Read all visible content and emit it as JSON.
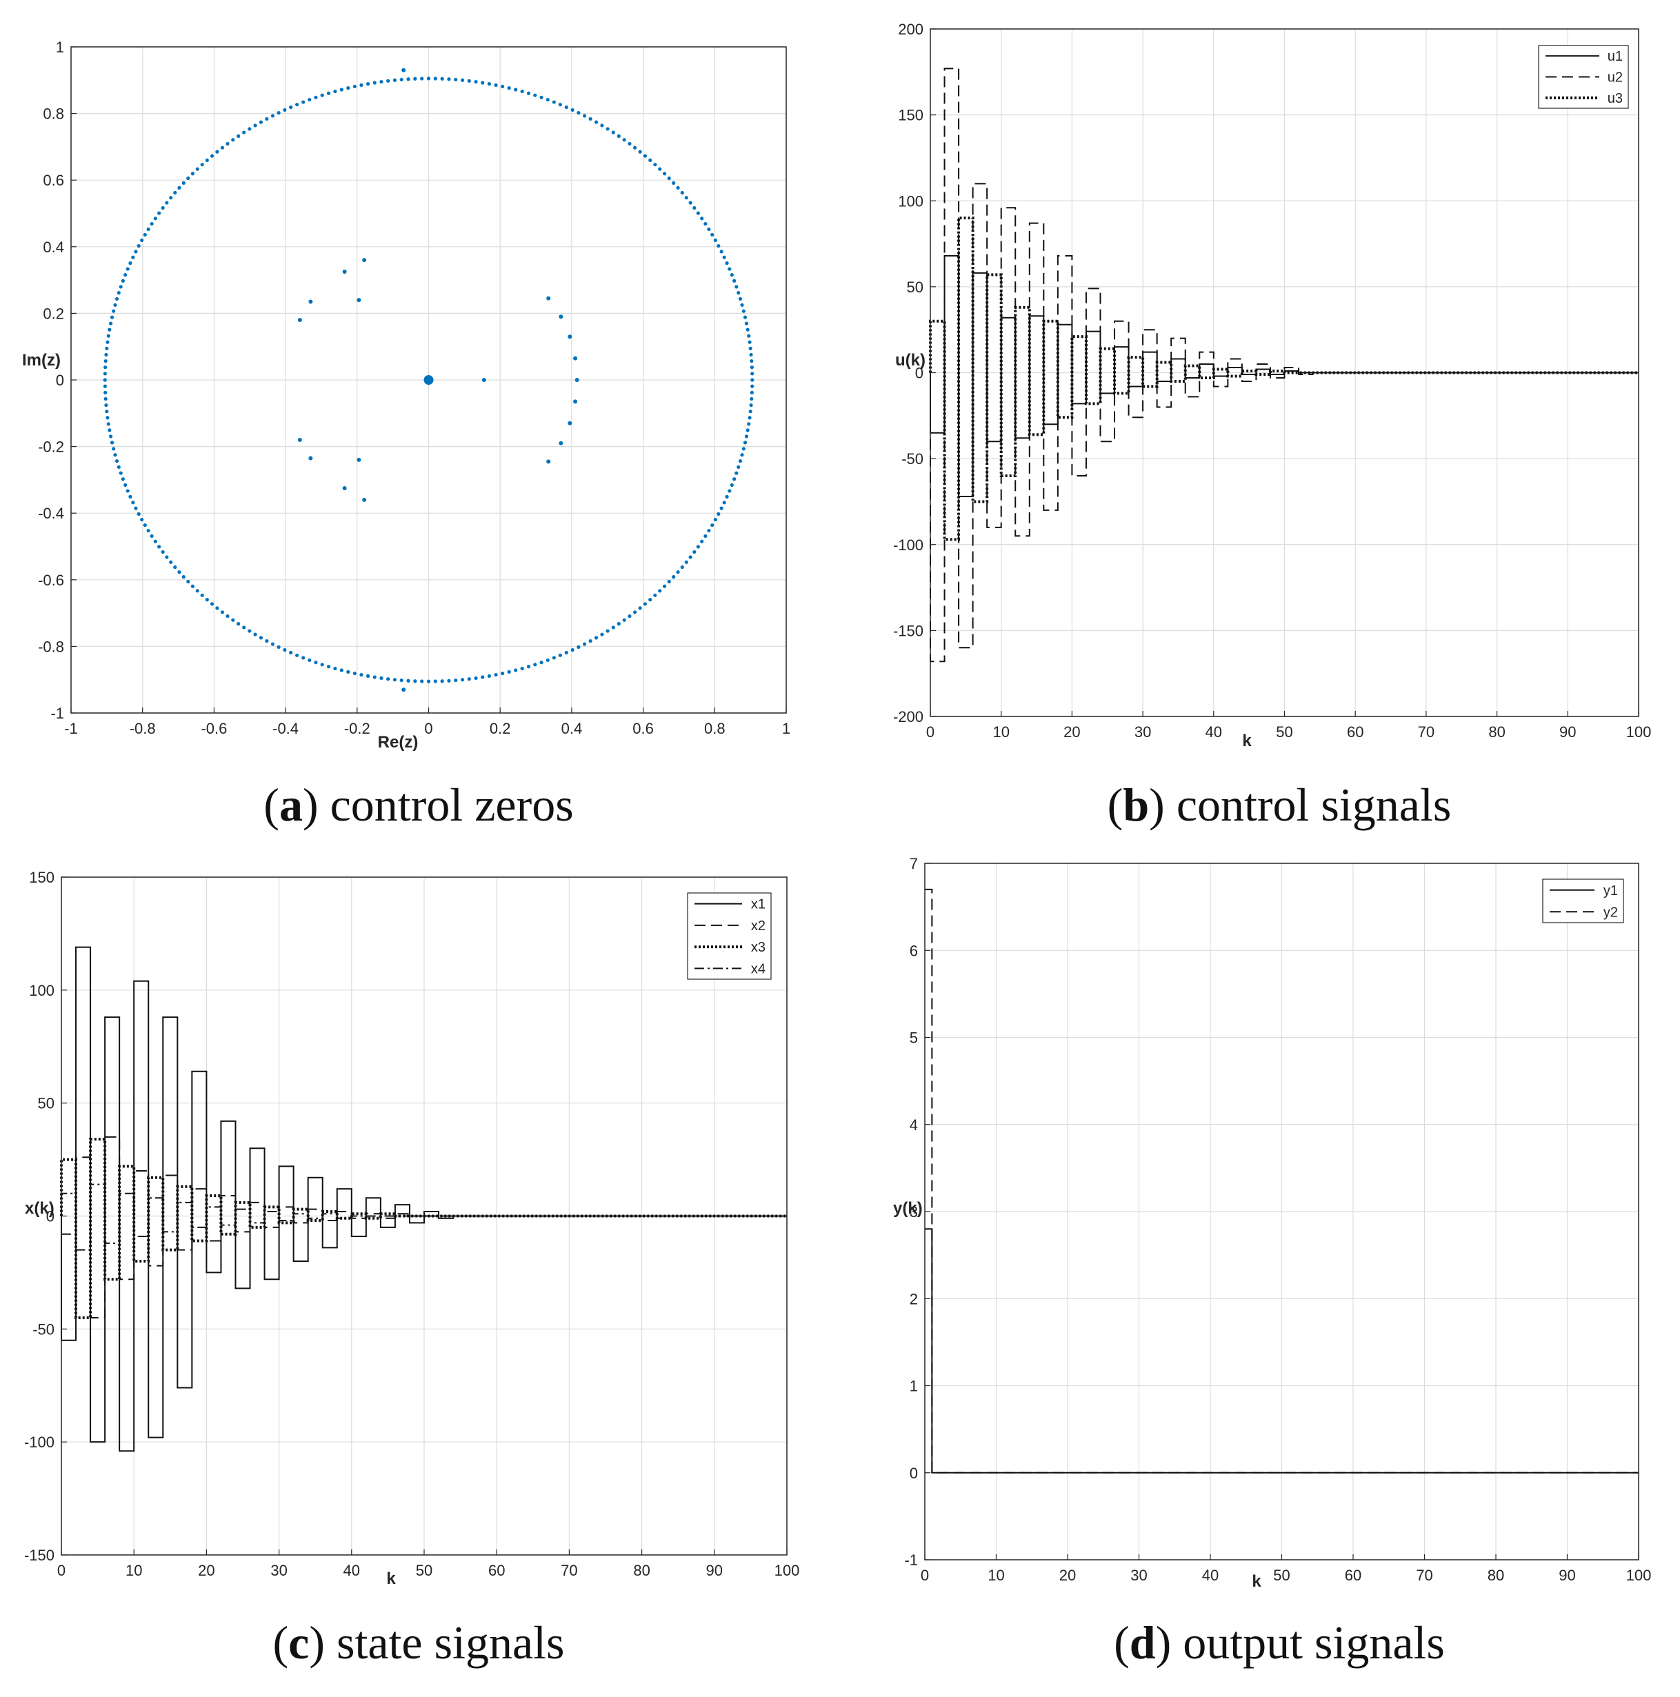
{
  "chart_data": [
    {
      "id": "a",
      "type": "scatter",
      "xlabel": "Re(z)",
      "ylabel": "Im(z)",
      "xlim": [
        -1,
        1
      ],
      "ylim": [
        -1,
        1
      ],
      "xticks": [
        "-1",
        "-0.8",
        "-0.6",
        "-0.4",
        "-0.2",
        "0",
        "0.2",
        "0.4",
        "0.6",
        "0.8",
        "1"
      ],
      "yticks": [
        "-1",
        "-0.8",
        "-0.6",
        "-0.4",
        "-0.2",
        "0",
        "0.2",
        "0.4",
        "0.6",
        "0.8",
        "1"
      ],
      "grid": true,
      "marker_color": "#0072BD",
      "circle_radius": 0.905,
      "circle_points": 300,
      "extra_points": [
        [
          -0.07,
          0.93
        ],
        [
          -0.07,
          -0.93
        ],
        [
          -0.36,
          0.18
        ],
        [
          -0.36,
          -0.18
        ],
        [
          -0.33,
          0.235
        ],
        [
          -0.33,
          -0.235
        ],
        [
          -0.235,
          0.325
        ],
        [
          -0.235,
          -0.325
        ],
        [
          -0.195,
          0.24
        ],
        [
          -0.195,
          -0.24
        ],
        [
          -0.18,
          0.36
        ],
        [
          -0.18,
          -0.36
        ],
        [
          0.155,
          0.0
        ],
        [
          0.335,
          0.245
        ],
        [
          0.335,
          -0.245
        ],
        [
          0.37,
          0.19
        ],
        [
          0.37,
          -0.19
        ],
        [
          0.395,
          0.13
        ],
        [
          0.395,
          -0.13
        ],
        [
          0.41,
          0.065
        ],
        [
          0.41,
          -0.065
        ],
        [
          0.415,
          0.0
        ]
      ],
      "origin_point": [
        0,
        0
      ],
      "caption_letter": "a",
      "caption_text": " control zeros"
    },
    {
      "id": "b",
      "type": "line",
      "step": true,
      "xlabel": "k",
      "ylabel": "u(k)",
      "xlim": [
        0,
        100
      ],
      "ylim": [
        -200,
        200
      ],
      "xticks": [
        "0",
        "10",
        "20",
        "30",
        "40",
        "50",
        "60",
        "70",
        "80",
        "90",
        "100"
      ],
      "yticks": [
        "-200",
        "-150",
        "-100",
        "-50",
        "0",
        "50",
        "100",
        "150",
        "200"
      ],
      "grid": true,
      "legend_position": "top-right",
      "series": [
        {
          "name": "u1",
          "dash": "solid",
          "values": [
            -35,
            68,
            -72,
            58,
            -40,
            32,
            -38,
            33,
            -30,
            28,
            -18,
            24,
            -12,
            15,
            -8,
            12,
            -5,
            8,
            -3,
            5,
            -2,
            3,
            -1,
            2,
            -1,
            1,
            0
          ]
        },
        {
          "name": "u2",
          "dash": "dashed",
          "values": [
            -168,
            177,
            -160,
            110,
            -90,
            96,
            -95,
            87,
            -80,
            68,
            -60,
            49,
            -40,
            30,
            -26,
            25,
            -20,
            20,
            -14,
            12,
            -8,
            8,
            -5,
            5,
            -3,
            3,
            -1
          ]
        },
        {
          "name": "u3",
          "dash": "dotted",
          "values": [
            30,
            -97,
            90,
            -75,
            57,
            -60,
            38,
            -36,
            30,
            -26,
            21,
            -18,
            14,
            -12,
            9,
            -8,
            6,
            -5,
            4,
            -3,
            2,
            -2,
            1,
            -1,
            1,
            0,
            0
          ]
        }
      ],
      "caption_letter": "b",
      "caption_text": " control signals"
    },
    {
      "id": "c",
      "type": "line",
      "step": true,
      "xlabel": "k",
      "ylabel": "x(k)",
      "xlim": [
        0,
        100
      ],
      "ylim": [
        -150,
        150
      ],
      "xticks": [
        "0",
        "10",
        "20",
        "30",
        "40",
        "50",
        "60",
        "70",
        "80",
        "90",
        "100"
      ],
      "yticks": [
        "-150",
        "-100",
        "-50",
        "0",
        "50",
        "100",
        "150"
      ],
      "grid": true,
      "legend_position": "top-right",
      "series": [
        {
          "name": "x1",
          "dash": "solid",
          "values": [
            -55,
            119,
            -100,
            88,
            -104,
            104,
            -98,
            88,
            -76,
            64,
            -25,
            42,
            -32,
            30,
            -28,
            22,
            -20,
            17,
            -14,
            12,
            -9,
            8,
            -5,
            5,
            -3,
            2,
            -1
          ]
        },
        {
          "name": "x2",
          "dash": "dashed",
          "values": [
            -8,
            26,
            -45,
            35,
            -28,
            20,
            -22,
            18,
            -15,
            12,
            -11,
            9,
            -7,
            6,
            -5,
            4,
            -3,
            3,
            -2,
            2,
            -1,
            1,
            -1,
            1,
            0,
            0,
            0
          ]
        },
        {
          "name": "x3",
          "dash": "dotted",
          "values": [
            25,
            -45,
            34,
            -28,
            22,
            -20,
            17,
            -15,
            13,
            -11,
            9,
            -8,
            6,
            -5,
            4,
            -3,
            3,
            -2,
            2,
            -1,
            1,
            -1,
            1,
            0,
            0,
            0,
            0
          ]
        },
        {
          "name": "x4",
          "dash": "dashdot",
          "values": [
            10,
            -15,
            14,
            -12,
            10,
            -9,
            8,
            -7,
            6,
            -5,
            4,
            -4,
            3,
            -3,
            2,
            -2,
            1,
            -1,
            1,
            -1,
            0,
            0,
            0,
            0,
            0,
            0,
            0
          ]
        }
      ],
      "caption_letter": "c",
      "caption_text": " state signals"
    },
    {
      "id": "d",
      "type": "line",
      "step": true,
      "xlabel": "k",
      "ylabel": "y(k)",
      "xlim": [
        0,
        100
      ],
      "ylim": [
        -1,
        7
      ],
      "xticks": [
        "0",
        "10",
        "20",
        "30",
        "40",
        "50",
        "60",
        "70",
        "80",
        "90",
        "100"
      ],
      "yticks": [
        "-1",
        "0",
        "1",
        "2",
        "3",
        "4",
        "5",
        "6",
        "7"
      ],
      "grid": true,
      "legend_position": "top-right",
      "series": [
        {
          "name": "y1",
          "dash": "solid",
          "values": [
            2.8,
            0
          ]
        },
        {
          "name": "y2",
          "dash": "dashed",
          "values": [
            6.7,
            0
          ]
        }
      ],
      "caption_letter": "d",
      "caption_text": " output signals"
    }
  ]
}
